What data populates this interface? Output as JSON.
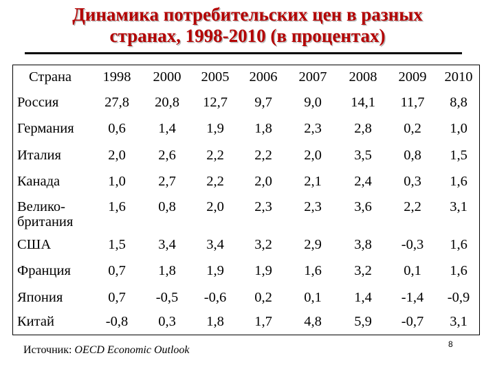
{
  "title": {
    "line1": "Динамика потребительских цен в разных",
    "line2": "странах, 1998-2010 (в процентах)"
  },
  "colors": {
    "title": "#b30000",
    "text": "#000000",
    "rule": "#000000"
  },
  "table": {
    "header_country": "Страна",
    "years": [
      "1998",
      "2000",
      "2005",
      "2006",
      "2007",
      "2008",
      "2009",
      "2010"
    ],
    "rows": [
      {
        "country": "Россия",
        "values": [
          "27,8",
          "20,8",
          "12,7",
          "9,7",
          "9,0",
          "14,1",
          "11,7",
          "8,8"
        ]
      },
      {
        "country": "Германия",
        "values": [
          "0,6",
          "1,4",
          "1,9",
          "1,8",
          "2,3",
          "2,8",
          "0,2",
          "1,0"
        ]
      },
      {
        "country": "Италия",
        "values": [
          "2,0",
          "2,6",
          "2,2",
          "2,2",
          "2,0",
          "3,5",
          "0,8",
          "1,5"
        ]
      },
      {
        "country": "Канада",
        "values": [
          "1,0",
          "2,7",
          "2,2",
          "2,0",
          "2,1",
          "2,4",
          "0,3",
          "1,6"
        ]
      },
      {
        "country": "Велико-британия",
        "country_line1": "Велико-",
        "country_line2": "британия",
        "values": [
          "1,6",
          "0,8",
          "2,0",
          "2,3",
          "2,3",
          "3,6",
          "2,2",
          "3,1"
        ]
      },
      {
        "country": "США",
        "values": [
          "1,5",
          "3,4",
          "3,4",
          "3,2",
          "2,9",
          "3,8",
          "-0,3",
          "1,6"
        ]
      },
      {
        "country": "Франция",
        "values": [
          "0,7",
          "1,8",
          "1,9",
          "1,9",
          "1,6",
          "3,2",
          "0,1",
          "1,6"
        ]
      },
      {
        "country": "Япония",
        "values": [
          "0,7",
          "-0,5",
          "-0,6",
          "0,2",
          "0,1",
          "1,4",
          "-1,4",
          "-0,9"
        ]
      },
      {
        "country": "Китай",
        "values": [
          "-0,8",
          "0,3",
          "1,8",
          "1,7",
          "4,8",
          "5,9",
          "-0,7",
          "3,1"
        ]
      }
    ]
  },
  "source": {
    "label": "Источник:",
    "text": "OECD Economic Outlook"
  },
  "page_number": "8"
}
